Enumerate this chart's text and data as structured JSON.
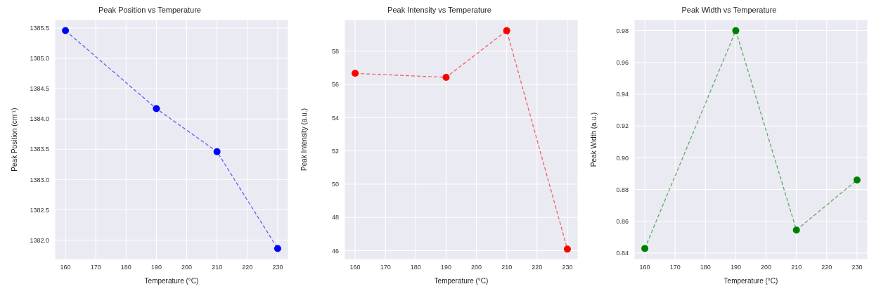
{
  "chart_data": [
    {
      "type": "line",
      "title": "Peak Position vs Temperature",
      "xlabel": "Temperature (°C)",
      "ylabel": "Peak Position (cm⁻¹)",
      "x": [
        160,
        190,
        210,
        230
      ],
      "series": [
        {
          "color": "#0000ff",
          "values": [
            1385.46,
            1384.17,
            1383.46,
            1381.86
          ]
        }
      ],
      "xlim": [
        156.5,
        233.5
      ],
      "xticks": [
        160,
        170,
        180,
        190,
        200,
        210,
        220,
        230
      ],
      "ylim": [
        1381.68,
        1385.64
      ],
      "yticks": [
        {
          "value": 1382,
          "label": "1382.0"
        },
        1382.5,
        {
          "value": 1383,
          "label": "1383.0"
        },
        1383.5,
        {
          "value": 1384,
          "label": "1384.0"
        },
        1384.5,
        {
          "value": 1385,
          "label": "1385.0"
        },
        1385.5
      ],
      "grid": true,
      "marker": "circle",
      "line_style": "dashed"
    },
    {
      "type": "line",
      "title": "Peak Intensity vs Temperature",
      "xlabel": "Temperature (°C)",
      "ylabel": "Peak Intensity (a.u.)",
      "x": [
        160,
        190,
        210,
        230
      ],
      "series": [
        {
          "color": "#ff0000",
          "values": [
            56.67,
            56.43,
            59.24,
            46.09
          ]
        }
      ],
      "xlim": [
        156.5,
        233.5
      ],
      "xticks": [
        160,
        170,
        180,
        190,
        200,
        210,
        220,
        230
      ],
      "ylim": [
        45.47,
        59.9
      ],
      "yticks": [
        46,
        48,
        50,
        52,
        54,
        56,
        58
      ],
      "grid": true,
      "marker": "circle",
      "line_style": "dashed"
    },
    {
      "type": "line",
      "title": "Peak Width vs Temperature",
      "xlabel": "Temperature (°C)",
      "ylabel": "Peak Width (a.u.)",
      "x": [
        160,
        190,
        210,
        230
      ],
      "series": [
        {
          "color": "#008000",
          "values": [
            0.8429,
            0.98,
            0.8545,
            0.886
          ]
        }
      ],
      "xlim": [
        156.5,
        233.5
      ],
      "xticks": [
        160,
        170,
        180,
        190,
        200,
        210,
        220,
        230
      ],
      "ylim": [
        0.836,
        0.9869
      ],
      "yticks": [
        0.84,
        0.86,
        0.88,
        {
          "value": 0.9,
          "label": "0.90"
        },
        0.92,
        0.94,
        0.96,
        0.98
      ],
      "grid": true,
      "marker": "circle",
      "line_style": "dashed"
    }
  ]
}
